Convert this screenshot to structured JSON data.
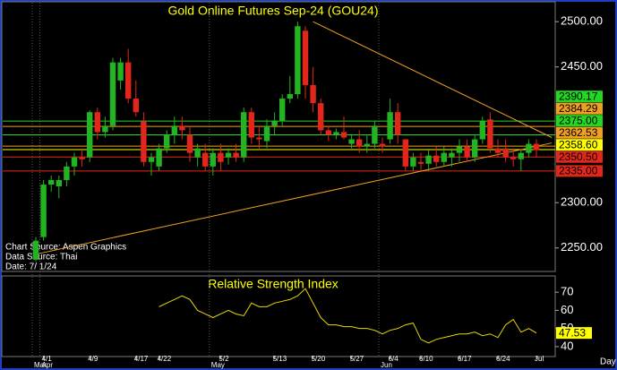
{
  "chart_data": [
    {
      "type": "candlestick",
      "title": "Gold Online Futures Sep-24 (GOU24)",
      "categories": [
        null,
        "4/1",
        null,
        null,
        null,
        null,
        null,
        "4/9",
        null,
        null,
        null,
        null,
        null,
        "4/17",
        null,
        null,
        "4/22",
        null,
        null,
        null,
        null,
        null,
        null,
        null,
        "5/2",
        null,
        null,
        null,
        null,
        null,
        null,
        "5/13",
        null,
        null,
        null,
        null,
        "5/20",
        null,
        null,
        null,
        null,
        "5/27",
        null,
        null,
        null,
        null,
        "6/4",
        null,
        null,
        null,
        "6/10",
        null,
        null,
        null,
        null,
        "6/17",
        null,
        null,
        null,
        null,
        "6/24",
        null,
        null,
        null,
        null,
        "Jul"
      ],
      "months": [
        "Mar",
        "Apr",
        null,
        null,
        null,
        null,
        null,
        null,
        null,
        null,
        null,
        null,
        null,
        null,
        null,
        null,
        null,
        null,
        null,
        null,
        null,
        null,
        null,
        "May",
        null,
        null,
        null,
        null,
        null,
        null,
        null,
        null,
        null,
        null,
        null,
        null,
        null,
        null,
        null,
        null,
        null,
        null,
        null,
        null,
        null,
        "Jun",
        null,
        null,
        null,
        null,
        null,
        null,
        null,
        null,
        null,
        null,
        null,
        null,
        null,
        null,
        null,
        null,
        null,
        null,
        null,
        null
      ],
      "open": [
        2237,
        2262,
        2320,
        2318,
        2325,
        2340,
        2350,
        2350,
        2400,
        2378,
        2385,
        2435,
        2455,
        2415,
        2390,
        2345,
        2340,
        2360,
        2375,
        2385,
        2375,
        2350,
        2355,
        2340,
        2355,
        2350,
        2355,
        2350,
        2400,
        2372,
        2368,
        2385,
        2390,
        2415,
        2420,
        2490,
        2430,
        2410,
        2380,
        2375,
        2378,
        2365,
        2370,
        2362,
        2365,
        2365,
        2370,
        2400,
        2370,
        2340,
        2345,
        2343,
        2352,
        2345,
        2350,
        2355,
        2362,
        2350,
        2370,
        2392,
        2360,
        2360,
        2350,
        2348,
        2355,
        2365
      ],
      "high": [
        2262,
        2325,
        2330,
        2330,
        2345,
        2355,
        2360,
        2402,
        2405,
        2395,
        2460,
        2460,
        2470,
        2435,
        2400,
        2355,
        2365,
        2380,
        2395,
        2395,
        2385,
        2365,
        2365,
        2360,
        2365,
        2360,
        2365,
        2405,
        2405,
        2385,
        2392,
        2400,
        2420,
        2440,
        2500,
        2495,
        2450,
        2415,
        2385,
        2382,
        2395,
        2375,
        2380,
        2375,
        2390,
        2372,
        2415,
        2410,
        2370,
        2355,
        2355,
        2358,
        2362,
        2362,
        2360,
        2370,
        2370,
        2375,
        2395,
        2400,
        2370,
        2370,
        2360,
        2358,
        2370,
        2370
      ],
      "low": [
        2235,
        2258,
        2312,
        2305,
        2318,
        2330,
        2340,
        2345,
        2370,
        2372,
        2380,
        2425,
        2410,
        2395,
        2340,
        2330,
        2335,
        2355,
        2365,
        2370,
        2345,
        2340,
        2335,
        2330,
        2335,
        2342,
        2345,
        2345,
        2365,
        2360,
        2360,
        2375,
        2385,
        2410,
        2415,
        2415,
        2400,
        2375,
        2368,
        2370,
        2370,
        2360,
        2355,
        2355,
        2360,
        2355,
        2365,
        2365,
        2335,
        2335,
        2335,
        2335,
        2340,
        2340,
        2340,
        2345,
        2345,
        2345,
        2365,
        2355,
        2350,
        2345,
        2340,
        2335,
        2350,
        2350
      ],
      "close": [
        2258,
        2320,
        2325,
        2325,
        2340,
        2350,
        2348,
        2400,
        2378,
        2385,
        2455,
        2455,
        2415,
        2400,
        2345,
        2350,
        2360,
        2375,
        2385,
        2380,
        2355,
        2360,
        2340,
        2355,
        2345,
        2355,
        2350,
        2400,
        2372,
        2370,
        2385,
        2390,
        2415,
        2420,
        2495,
        2430,
        2410,
        2380,
        2375,
        2378,
        2372,
        2370,
        2362,
        2365,
        2385,
        2362,
        2400,
        2375,
        2340,
        2350,
        2343,
        2352,
        2345,
        2355,
        2355,
        2362,
        2350,
        2370,
        2390,
        2360,
        2355,
        2350,
        2348,
        2355,
        2365,
        2358
      ],
      "up_color": "#22b422",
      "down_color": "#e3261b",
      "ylim": [
        2225,
        2520
      ],
      "yticks": [
        {
          "value": 2250,
          "label": "2250.00"
        },
        {
          "value": 2300,
          "label": "2300.00"
        },
        {
          "value": 2450,
          "label": "2450.00"
        },
        {
          "value": 2500,
          "label": "2500.00"
        }
      ],
      "levels": [
        {
          "value": 2390.17,
          "label": "2390.17",
          "color": "#22d822"
        },
        {
          "value": 2384.29,
          "label": "2384.29",
          "color": "#f0a020"
        },
        {
          "value": 2375,
          "label": "2375.00",
          "color": "#22d822"
        },
        {
          "value": 2362.53,
          "label": "2362.53",
          "color": "#f0a020"
        },
        {
          "value": 2358.6,
          "label": "2358.60",
          "color": "#ffff00"
        },
        {
          "value": 2350.5,
          "label": "2350.50",
          "color": "#e3261b"
        },
        {
          "value": 2335,
          "label": "2335.00",
          "color": "#e3261b"
        }
      ],
      "trendlines": [
        {
          "color": "#f0a020",
          "x": [
            36,
            67
          ],
          "y": [
            2500,
            2372
          ]
        },
        {
          "color": "#f0a020",
          "x": [
            0,
            67
          ],
          "y": [
            2243,
            2366
          ]
        }
      ],
      "notes": [
        "Chart Source: Aspen Graphics",
        "Data Source: Thai",
        "Date: 7/ 1/24"
      ],
      "x_label": "Day"
    },
    {
      "type": "line",
      "title": "Relative Strength Index",
      "color": "#e8d800",
      "values": [
        null,
        null,
        null,
        null,
        null,
        null,
        null,
        null,
        null,
        null,
        null,
        null,
        null,
        null,
        null,
        null,
        62,
        64,
        66,
        68,
        66,
        60,
        58,
        56,
        58,
        60,
        58,
        57,
        64,
        62,
        62,
        64,
        65,
        66,
        68,
        72,
        64,
        56,
        52,
        52,
        51,
        51,
        50,
        50,
        49,
        47,
        49,
        50,
        52,
        53,
        44,
        42,
        44,
        45,
        46,
        47,
        47,
        48,
        46,
        47,
        45,
        52,
        55,
        48,
        50,
        47.53
      ],
      "ylim": [
        35,
        78
      ],
      "yticks": [
        40,
        50,
        60,
        70
      ],
      "current": {
        "value": 47.53,
        "label": "47.53"
      }
    }
  ]
}
